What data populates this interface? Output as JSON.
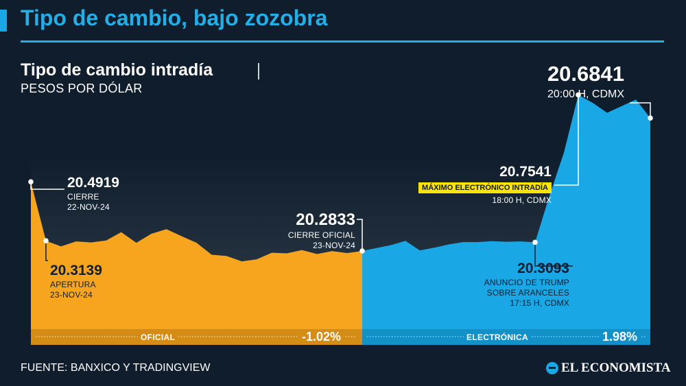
{
  "header": {
    "title": "Tipo de cambio, bajo zozobra"
  },
  "chart_title": "Tipo de cambio intradía",
  "chart_subtitle": "PESOS POR DÓLAR",
  "source": "FUENTE: BANXICO Y TRADINGVIEW",
  "logo": "EL ECONOMISTA",
  "colors": {
    "background": "#0f1d2c",
    "oficial": "#f7a51e",
    "electronica": "#1aa7e6",
    "highlight": "#ffe400",
    "title": "#23aee8"
  },
  "annotations": {
    "cierre_prev": {
      "value": "20.4919",
      "lines": [
        "CIERRE",
        "22-NOV-24"
      ]
    },
    "apertura": {
      "value": "20.3139",
      "lines": [
        "APERTURA",
        "23-NOV-24"
      ]
    },
    "cierre_oficial": {
      "value": "20.2833",
      "lines": [
        "CIERRE OFICIAL",
        "23-NOV-24"
      ]
    },
    "trump": {
      "value": "20.3093",
      "lines": [
        "ANUNCIO DE TRUMP",
        "SOBRE ARANCELES",
        "17:15 H, CDMX"
      ]
    },
    "maximo": {
      "value": "20.7541",
      "tag": "MÁXIMO ELECTRÓNICO INTRADÍA",
      "time": "18:00 H, CDMX"
    },
    "ultimo": {
      "value": "20.6841",
      "time": "20:00 H, CDMX"
    }
  },
  "chart_data": {
    "type": "area",
    "ylim": [
      20.0,
      20.85
    ],
    "series": [
      {
        "name": "OFICIAL",
        "change": "-1.02%",
        "values": [
          20.4919,
          20.3139,
          20.297,
          20.312,
          20.309,
          20.315,
          20.34,
          20.308,
          20.335,
          20.349,
          20.328,
          20.308,
          20.272,
          20.268,
          20.252,
          20.258,
          20.278,
          20.276,
          20.286,
          20.274,
          20.283,
          20.277,
          20.2833
        ]
      },
      {
        "name": "ELECTRÓNICA",
        "change": "1.98%",
        "values": [
          20.2833,
          20.292,
          20.301,
          20.314,
          20.285,
          20.293,
          20.303,
          20.31,
          20.31,
          20.313,
          20.311,
          20.312,
          20.3093,
          20.45,
          20.58,
          20.7541,
          20.73,
          20.7,
          20.72,
          20.74,
          20.6841
        ]
      }
    ]
  }
}
